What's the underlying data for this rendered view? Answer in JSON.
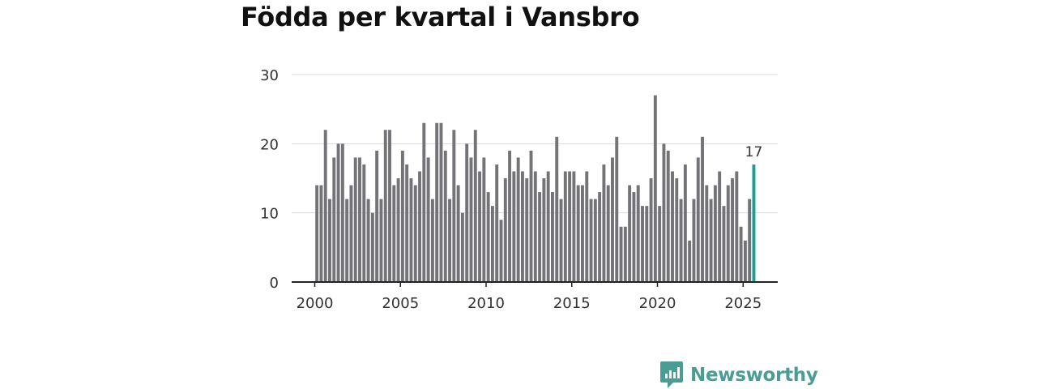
{
  "chart_data": {
    "type": "bar",
    "title": "Födda per kvartal i Vansbro",
    "xlabel": "",
    "ylabel": "",
    "ylim": [
      0,
      30
    ],
    "yticks": [
      0,
      10,
      20,
      30
    ],
    "xticks": [
      "2000",
      "2005",
      "2010",
      "2015",
      "2020",
      "2025"
    ],
    "grid": true,
    "start_year": 2000,
    "start_quarter": 1,
    "values": [
      14,
      14,
      22,
      12,
      18,
      20,
      20,
      12,
      14,
      18,
      18,
      17,
      12,
      10,
      19,
      12,
      22,
      22,
      14,
      15,
      19,
      17,
      15,
      14,
      16,
      23,
      18,
      12,
      23,
      23,
      19,
      12,
      22,
      14,
      10,
      20,
      18,
      22,
      16,
      18,
      13,
      11,
      17,
      9,
      15,
      19,
      16,
      18,
      16,
      15,
      19,
      16,
      13,
      15,
      16,
      13,
      21,
      12,
      16,
      16,
      16,
      14,
      14,
      16,
      12,
      12,
      13,
      17,
      14,
      18,
      21,
      8,
      8,
      14,
      13,
      14,
      11,
      11,
      15,
      27,
      11,
      20,
      19,
      16,
      15,
      12,
      17,
      6,
      12,
      18,
      21,
      14,
      12,
      14,
      16,
      11,
      14,
      15,
      16,
      8,
      6,
      12,
      17
    ],
    "highlight_label": "17",
    "colors": {
      "bar": "#737378",
      "highlight": "#1a9e96",
      "grid": "#d9d9d9",
      "axis": "#222222",
      "text": "#333333"
    }
  },
  "brand": {
    "name": "Newsworthy",
    "color": "#4a9d95"
  }
}
